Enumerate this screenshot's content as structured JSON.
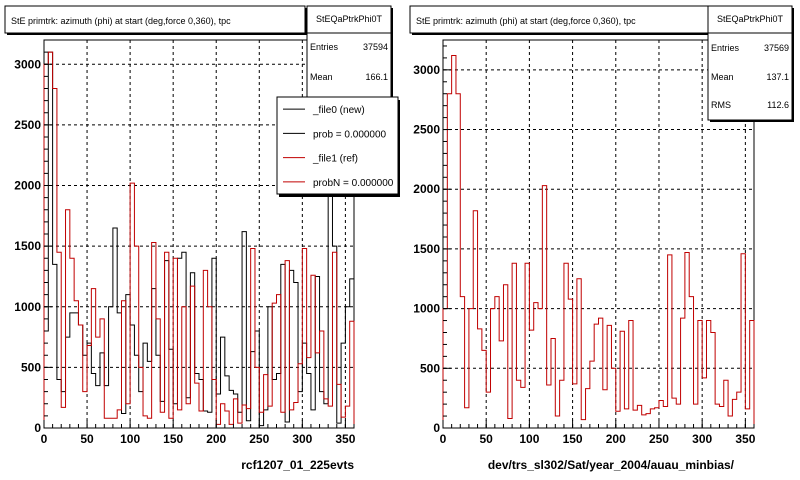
{
  "chart_data": [
    {
      "type": "histogram",
      "title": "StE primtrk: azimuth (phi) at start (deg,force 0,360), tpc",
      "xlabel": "rcf1207_01_225evts",
      "xlim": [
        0,
        360
      ],
      "ylim": [
        0,
        3200
      ],
      "x_ticks": [
        0,
        50,
        100,
        150,
        200,
        250,
        300,
        350
      ],
      "y_ticks": [
        0,
        500,
        1000,
        1500,
        2000,
        2500,
        3000
      ],
      "grid": true,
      "bin_width": 5,
      "stats": {
        "name": "StEQaPtrkPhi0T",
        "rows": [
          {
            "label": "Entries",
            "value": "37594"
          },
          {
            "label": "Mean",
            "value": "166.1"
          }
        ]
      },
      "legend": {
        "placement": "top-right",
        "entries": [
          {
            "text": "_file0 (new)",
            "color": "#000000"
          },
          {
            "text": "prob = 0.000000",
            "color": "#000000"
          },
          {
            "text": "_file1 (ref)",
            "color": "#c00000"
          },
          {
            "text": "probN = 0.000000",
            "color": "#c00000"
          }
        ]
      },
      "series": [
        {
          "color": "#000000",
          "values": [
            800,
            3100,
            1350,
            400,
            300,
            750,
            950,
            950,
            850,
            600,
            700,
            450,
            350,
            620,
            350,
            1000,
            1650,
            950,
            120,
            1100,
            850,
            600,
            300,
            700,
            550,
            1150,
            600,
            220,
            1380,
            650,
            200,
            1400,
            1450,
            250,
            1280,
            450,
            400,
            140,
            130,
            1400,
            280,
            750,
            430,
            310,
            280,
            130,
            1620,
            60,
            630,
            800,
            20,
            150,
            1000,
            400,
            450,
            1350,
            50,
            1300,
            1200,
            300,
            700,
            450,
            150,
            1250,
            300,
            200,
            2000,
            1500,
            40,
            700,
            1000,
            1230
          ]
        },
        {
          "color": "#c00000",
          "values": [
            3000,
            3100,
            2800,
            1450,
            170,
            1800,
            1400,
            1050,
            850,
            300,
            680,
            1150,
            750,
            900,
            80,
            80,
            80,
            150,
            1050,
            200,
            2020,
            1500,
            500,
            100,
            80,
            1530,
            900,
            130,
            1450,
            80,
            1400,
            150,
            1000,
            200,
            1170,
            370,
            140,
            1300,
            1000,
            400,
            30,
            200,
            140,
            30,
            240,
            40,
            190,
            160,
            1480,
            500,
            130,
            440,
            180,
            1030,
            1100,
            130,
            1380,
            150,
            210,
            530,
            1480,
            580,
            1260,
            620,
            800,
            240,
            180,
            1450,
            360,
            90,
            180,
            880
          ]
        }
      ]
    },
    {
      "type": "histogram",
      "title": "StE primtrk: azimuth (phi) at start (deg,force 0,360), tpc",
      "xlabel": "dev/trs_sl302/Sat/year_2004/auau_minbias/",
      "xlim": [
        0,
        360
      ],
      "ylim": [
        0,
        3250
      ],
      "x_ticks": [
        0,
        50,
        100,
        150,
        200,
        250,
        300,
        350
      ],
      "y_ticks": [
        0,
        500,
        1000,
        1500,
        2000,
        2500,
        3000
      ],
      "grid": true,
      "bin_width": 5,
      "stats": {
        "name": "StEQaPtrkPhi0T",
        "rows": [
          {
            "label": "Entries",
            "value": "37569"
          },
          {
            "label": "Mean",
            "value": "137.1"
          },
          {
            "label": "RMS",
            "value": "112.6"
          }
        ]
      },
      "series": [
        {
          "color": "#c00000",
          "values": [
            1000,
            2800,
            3120,
            2800,
            1100,
            170,
            1000,
            1820,
            830,
            650,
            300,
            1000,
            1100,
            730,
            1200,
            80,
            1380,
            400,
            340,
            1380,
            820,
            1050,
            1000,
            2030,
            360,
            750,
            100,
            400,
            1380,
            1080,
            370,
            1250,
            70,
            330,
            560,
            870,
            920,
            320,
            860,
            500,
            140,
            810,
            160,
            900,
            150,
            190,
            110,
            120,
            160,
            170,
            230,
            180,
            1450,
            250,
            200,
            920,
            1470,
            1100,
            200,
            900,
            420,
            900,
            800,
            200,
            180,
            400,
            100,
            240,
            300,
            1460,
            160,
            900
          ]
        }
      ]
    }
  ]
}
